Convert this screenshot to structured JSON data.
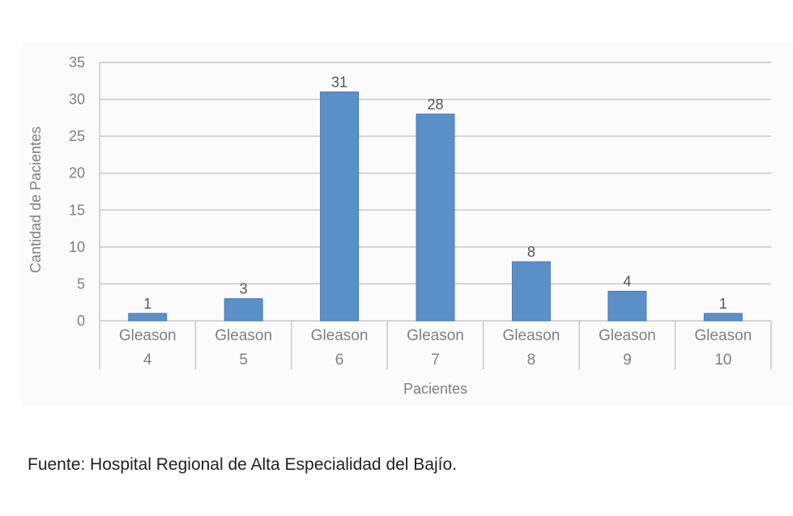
{
  "chart_data": {
    "type": "bar",
    "categories": [
      [
        "Gleason",
        "4"
      ],
      [
        "Gleason",
        "5"
      ],
      [
        "Gleason",
        "6"
      ],
      [
        "Gleason",
        "7"
      ],
      [
        "Gleason",
        "8"
      ],
      [
        "Gleason",
        "9"
      ],
      [
        "Gleason",
        "10"
      ]
    ],
    "values": [
      1,
      3,
      31,
      28,
      8,
      4,
      1
    ],
    "data_labels": [
      "1",
      "3",
      "31",
      "28",
      "8",
      "4",
      "1"
    ],
    "xlabel": "Pacientes",
    "ylabel": "Cantidad de Pacientes",
    "ylim": [
      0,
      35
    ],
    "yticks": [
      0,
      5,
      10,
      15,
      20,
      25,
      30,
      35
    ],
    "grid": true,
    "legend": "none",
    "bar_color": "#5b8fc7",
    "grid_color": "#c8c8c8"
  },
  "source_note": "Fuente: Hospital Regional de Alta Especialidad del Bajío."
}
